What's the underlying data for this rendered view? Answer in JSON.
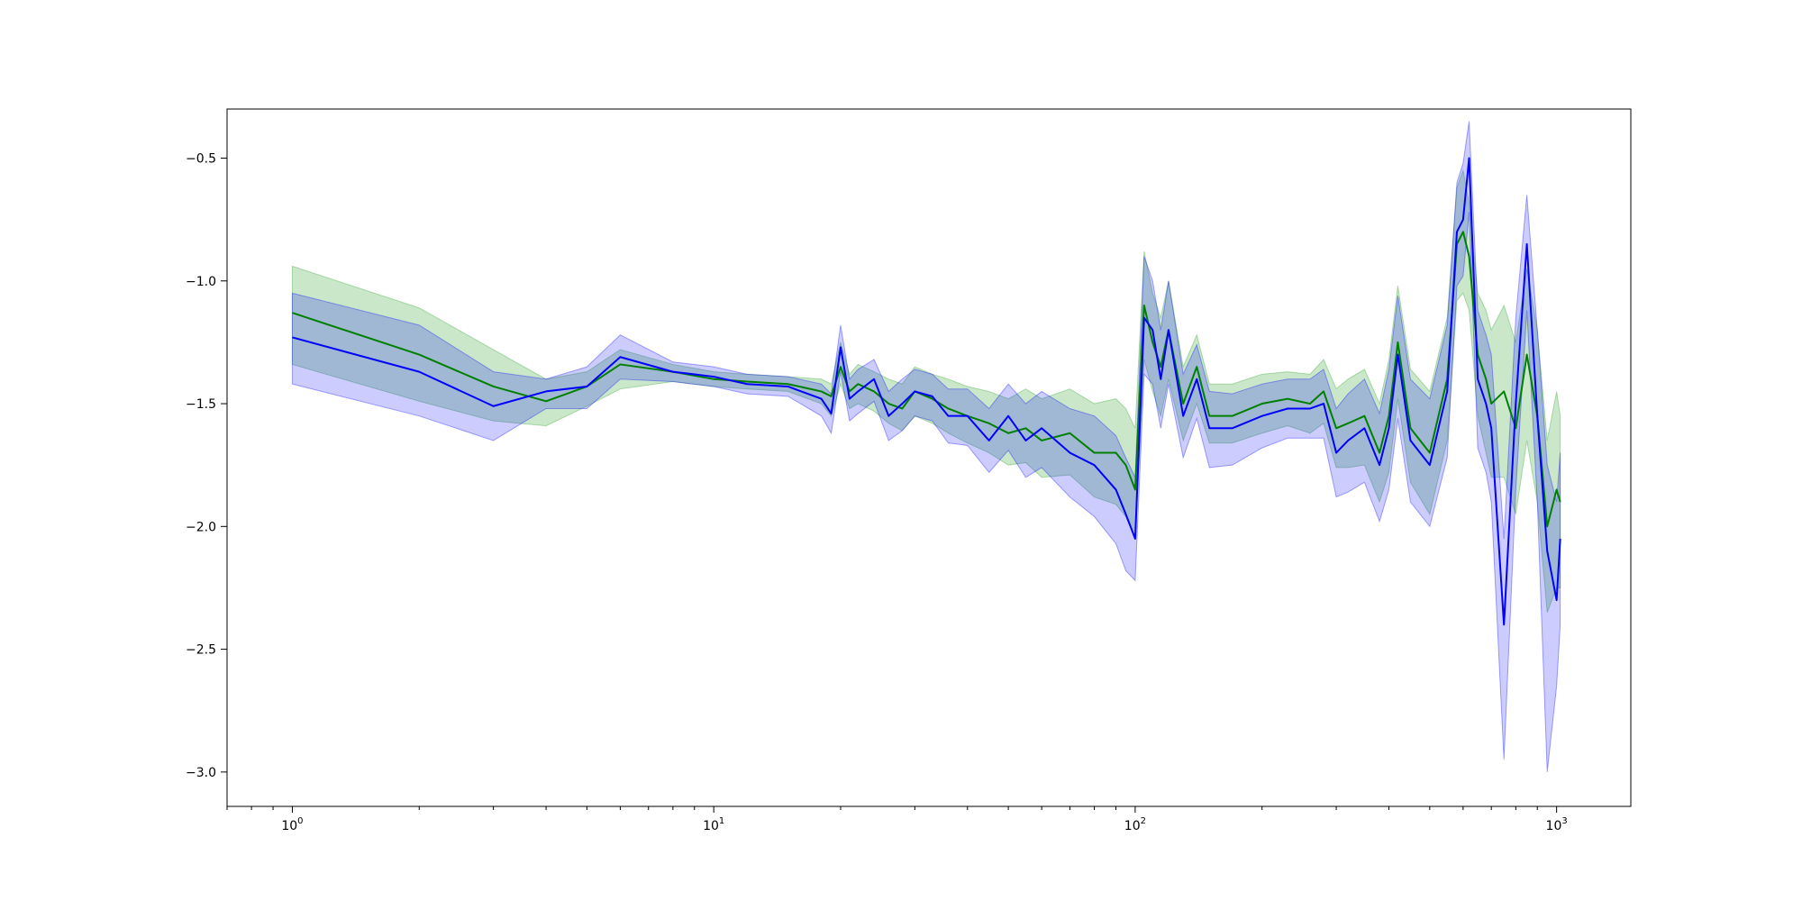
{
  "chart_data": {
    "type": "line",
    "title": "",
    "xlabel": "",
    "ylabel": "",
    "x_scale": "log",
    "xlim": [
      0.7,
      1500
    ],
    "ylim": [
      -3.14,
      -0.3
    ],
    "grid": false,
    "legend": "none",
    "x_ticks": [
      {
        "value": 1,
        "base": "10",
        "exp": "0"
      },
      {
        "value": 10,
        "base": "10",
        "exp": "1"
      },
      {
        "value": 100,
        "base": "10",
        "exp": "2"
      },
      {
        "value": 1000,
        "base": "10",
        "exp": "3"
      }
    ],
    "y_ticks": [
      {
        "value": -0.5,
        "label": "−0.5"
      },
      {
        "value": -1.0,
        "label": "−1.0"
      },
      {
        "value": -1.5,
        "label": "−1.5"
      },
      {
        "value": -2.0,
        "label": "−2.0"
      },
      {
        "value": -2.5,
        "label": "−2.5"
      },
      {
        "value": -3.0,
        "label": "−3.0"
      }
    ],
    "series": [
      {
        "color": "#008000",
        "band_color": "#2ca02c",
        "band_opacity": 0.25,
        "x": [
          1,
          2,
          3,
          4,
          5,
          6,
          8,
          10,
          12,
          15,
          18,
          19,
          20,
          21,
          22,
          24,
          26,
          28,
          30,
          33,
          36,
          40,
          45,
          50,
          55,
          60,
          70,
          80,
          90,
          95,
          100,
          105,
          110,
          115,
          120,
          130,
          140,
          150,
          170,
          200,
          230,
          260,
          280,
          300,
          320,
          350,
          380,
          400,
          420,
          450,
          500,
          550,
          580,
          600,
          620,
          650,
          680,
          700,
          750,
          800,
          850,
          900,
          950,
          1000,
          1020
        ],
        "y": [
          -1.13,
          -1.3,
          -1.43,
          -1.49,
          -1.43,
          -1.34,
          -1.37,
          -1.4,
          -1.41,
          -1.42,
          -1.45,
          -1.47,
          -1.35,
          -1.45,
          -1.42,
          -1.45,
          -1.5,
          -1.52,
          -1.45,
          -1.48,
          -1.52,
          -1.55,
          -1.58,
          -1.62,
          -1.6,
          -1.65,
          -1.62,
          -1.7,
          -1.7,
          -1.75,
          -1.85,
          -1.1,
          -1.25,
          -1.35,
          -1.2,
          -1.5,
          -1.35,
          -1.55,
          -1.55,
          -1.5,
          -1.48,
          -1.5,
          -1.45,
          -1.6,
          -1.58,
          -1.55,
          -1.7,
          -1.55,
          -1.25,
          -1.6,
          -1.7,
          -1.4,
          -0.85,
          -0.8,
          -0.9,
          -1.3,
          -1.4,
          -1.5,
          -1.45,
          -1.6,
          -1.3,
          -1.55,
          -2.0,
          -1.85,
          -1.9
        ],
        "upper": [
          -0.94,
          -1.11,
          -1.28,
          -1.4,
          -1.37,
          -1.28,
          -1.34,
          -1.37,
          -1.38,
          -1.39,
          -1.4,
          -1.42,
          -1.25,
          -1.38,
          -1.34,
          -1.37,
          -1.4,
          -1.42,
          -1.35,
          -1.38,
          -1.4,
          -1.43,
          -1.45,
          -1.48,
          -1.44,
          -1.48,
          -1.44,
          -1.5,
          -1.48,
          -1.52,
          -1.6,
          -0.88,
          -1.05,
          -1.15,
          -1.0,
          -1.35,
          -1.22,
          -1.42,
          -1.42,
          -1.38,
          -1.37,
          -1.38,
          -1.32,
          -1.44,
          -1.4,
          -1.36,
          -1.5,
          -1.32,
          -1.02,
          -1.36,
          -1.45,
          -1.15,
          -0.62,
          -0.55,
          -0.68,
          -1.05,
          -1.12,
          -1.2,
          -1.1,
          -1.25,
          -0.95,
          -1.2,
          -1.65,
          -1.45,
          -1.55
        ],
        "lower": [
          -1.34,
          -1.49,
          -1.57,
          -1.59,
          -1.51,
          -1.44,
          -1.41,
          -1.43,
          -1.44,
          -1.45,
          -1.5,
          -1.55,
          -1.42,
          -1.52,
          -1.5,
          -1.53,
          -1.58,
          -1.61,
          -1.55,
          -1.58,
          -1.62,
          -1.66,
          -1.7,
          -1.75,
          -1.74,
          -1.8,
          -1.79,
          -1.88,
          -1.91,
          -1.96,
          -2.05,
          -1.32,
          -1.45,
          -1.55,
          -1.4,
          -1.65,
          -1.5,
          -1.66,
          -1.66,
          -1.62,
          -1.59,
          -1.62,
          -1.58,
          -1.76,
          -1.76,
          -1.75,
          -1.9,
          -1.78,
          -1.48,
          -1.82,
          -1.95,
          -1.65,
          -1.08,
          -1.05,
          -1.12,
          -1.55,
          -1.7,
          -1.8,
          -1.8,
          -1.95,
          -1.65,
          -1.9,
          -2.35,
          -2.25,
          -2.25
        ]
      },
      {
        "color": "#0000ff",
        "band_color": "#0000ff",
        "band_opacity": 0.2,
        "x": [
          1,
          2,
          3,
          4,
          5,
          6,
          8,
          10,
          12,
          15,
          18,
          19,
          20,
          21,
          22,
          24,
          26,
          28,
          30,
          33,
          36,
          40,
          45,
          50,
          55,
          60,
          70,
          80,
          90,
          95,
          100,
          105,
          110,
          115,
          120,
          130,
          140,
          150,
          170,
          200,
          230,
          260,
          280,
          300,
          320,
          350,
          380,
          400,
          420,
          450,
          500,
          550,
          580,
          600,
          620,
          650,
          680,
          700,
          750,
          800,
          850,
          900,
          950,
          1000,
          1020
        ],
        "y": [
          -1.23,
          -1.37,
          -1.51,
          -1.45,
          -1.43,
          -1.31,
          -1.37,
          -1.39,
          -1.42,
          -1.43,
          -1.48,
          -1.54,
          -1.27,
          -1.48,
          -1.45,
          -1.4,
          -1.55,
          -1.5,
          -1.45,
          -1.47,
          -1.55,
          -1.55,
          -1.65,
          -1.55,
          -1.65,
          -1.6,
          -1.7,
          -1.75,
          -1.85,
          -1.95,
          -2.05,
          -1.15,
          -1.2,
          -1.4,
          -1.2,
          -1.55,
          -1.4,
          -1.6,
          -1.6,
          -1.55,
          -1.52,
          -1.52,
          -1.5,
          -1.7,
          -1.65,
          -1.6,
          -1.75,
          -1.6,
          -1.3,
          -1.65,
          -1.75,
          -1.45,
          -0.8,
          -0.75,
          -0.5,
          -1.4,
          -1.5,
          -1.6,
          -2.4,
          -1.5,
          -0.85,
          -1.55,
          -2.1,
          -2.3,
          -2.05
        ],
        "upper": [
          -1.05,
          -1.18,
          -1.37,
          -1.4,
          -1.35,
          -1.22,
          -1.33,
          -1.35,
          -1.38,
          -1.39,
          -1.42,
          -1.46,
          -1.18,
          -1.4,
          -1.36,
          -1.32,
          -1.45,
          -1.4,
          -1.36,
          -1.38,
          -1.44,
          -1.44,
          -1.52,
          -1.42,
          -1.5,
          -1.45,
          -1.52,
          -1.55,
          -1.63,
          -1.72,
          -1.8,
          -0.9,
          -1.0,
          -1.2,
          -1.0,
          -1.38,
          -1.26,
          -1.45,
          -1.46,
          -1.42,
          -1.4,
          -1.4,
          -1.36,
          -1.52,
          -1.46,
          -1.4,
          -1.54,
          -1.36,
          -1.06,
          -1.4,
          -1.48,
          -1.18,
          -0.6,
          -0.52,
          -0.35,
          -1.12,
          -1.22,
          -1.3,
          -2.05,
          -1.15,
          -0.65,
          -1.2,
          -1.75,
          -1.9,
          -1.7
        ],
        "lower": [
          -1.42,
          -1.55,
          -1.65,
          -1.52,
          -1.52,
          -1.4,
          -1.41,
          -1.43,
          -1.46,
          -1.47,
          -1.55,
          -1.62,
          -1.37,
          -1.57,
          -1.54,
          -1.49,
          -1.65,
          -1.61,
          -1.55,
          -1.57,
          -1.66,
          -1.67,
          -1.78,
          -1.69,
          -1.8,
          -1.76,
          -1.88,
          -1.96,
          -2.07,
          -2.18,
          -2.22,
          -1.38,
          -1.42,
          -1.6,
          -1.42,
          -1.72,
          -1.56,
          -1.76,
          -1.75,
          -1.68,
          -1.64,
          -1.64,
          -1.64,
          -1.88,
          -1.86,
          -1.82,
          -1.98,
          -1.85,
          -1.56,
          -1.9,
          -2.0,
          -1.72,
          -1.02,
          -0.98,
          -0.72,
          -1.68,
          -1.78,
          -1.9,
          -2.95,
          -1.85,
          -1.12,
          -1.9,
          -3.0,
          -2.65,
          -2.4
        ]
      }
    ]
  }
}
